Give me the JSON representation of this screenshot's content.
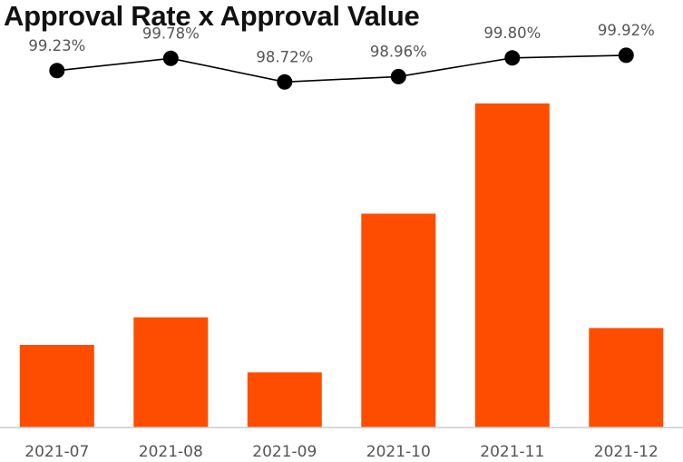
{
  "chart_data": {
    "type": "bar",
    "title": "Approval Rate x Approval Value",
    "categories": [
      "2021-07",
      "2021-08",
      "2021-09",
      "2021-10",
      "2021-11",
      "2021-12"
    ],
    "series": [
      {
        "type": "bar",
        "values": [
          25.5,
          34.0,
          17.0,
          66.0,
          100.0,
          30.7
        ],
        "color": "#ff4d00"
      },
      {
        "type": "line",
        "values": [
          99.23,
          99.78,
          98.72,
          98.96,
          99.8,
          99.92
        ],
        "labels": [
          "99.23%",
          "99.78%",
          "98.72%",
          "98.96%",
          "99.80%",
          "99.92%"
        ],
        "color": "#000000"
      }
    ],
    "ylim": [
      0,
      100
    ],
    "line_ylim": [
      98.2,
      100.2
    ],
    "grid": false,
    "legend": "none"
  }
}
